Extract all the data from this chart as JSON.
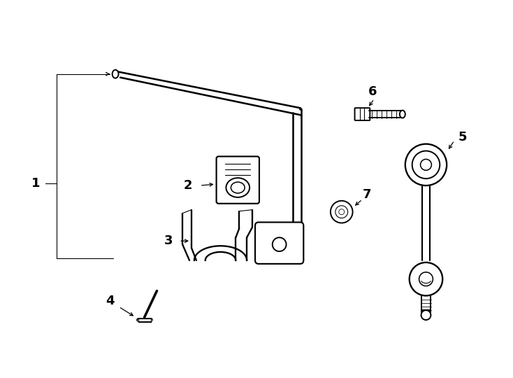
{
  "background_color": "#ffffff",
  "line_color": "#000000",
  "lw": 1.4,
  "tlw": 0.8,
  "label_fontsize": 13,
  "figsize": [
    7.34,
    5.4
  ],
  "dpi": 100
}
